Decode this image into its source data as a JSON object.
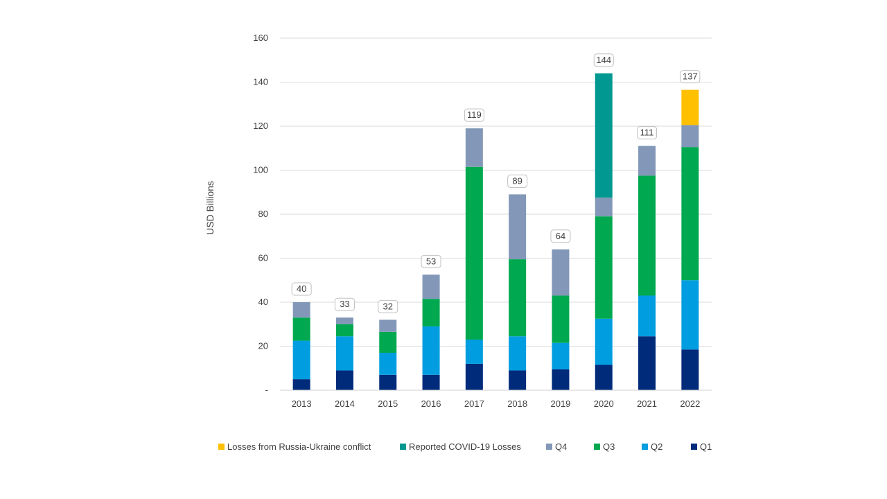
{
  "chart_data": {
    "type": "bar",
    "stacked": true,
    "title": "",
    "xlabel": "",
    "ylabel": "USD Billions",
    "ylim": [
      0,
      160
    ],
    "yticks": [
      {
        "value": 0,
        "label": "-"
      },
      {
        "value": 20,
        "label": "20"
      },
      {
        "value": 40,
        "label": "40"
      },
      {
        "value": 60,
        "label": "60"
      },
      {
        "value": 80,
        "label": "80"
      },
      {
        "value": 100,
        "label": "100"
      },
      {
        "value": 120,
        "label": "120"
      },
      {
        "value": 140,
        "label": "140"
      },
      {
        "value": 160,
        "label": "160"
      }
    ],
    "grid": true,
    "legend_position": "bottom",
    "categories": [
      "2013",
      "2014",
      "2015",
      "2016",
      "2017",
      "2018",
      "2019",
      "2020",
      "2021",
      "2022"
    ],
    "series": [
      {
        "name": "Q1",
        "color": "#002b7a",
        "values": [
          5,
          9,
          7,
          7,
          12,
          9,
          9.5,
          11.5,
          24.5,
          18.5
        ]
      },
      {
        "name": "Q2",
        "color": "#009de0",
        "values": [
          17.5,
          15.5,
          10,
          22,
          11,
          15.5,
          12,
          21,
          18.5,
          31.5
        ]
      },
      {
        "name": "Q3",
        "color": "#00a84f",
        "values": [
          10.5,
          5.5,
          9.5,
          12.5,
          78.5,
          35,
          21.5,
          46.5,
          54.5,
          60.5
        ]
      },
      {
        "name": "Q4",
        "color": "#8398b8",
        "values": [
          7,
          3,
          5.5,
          11,
          17.5,
          29.5,
          21,
          8.5,
          13.5,
          10
        ]
      },
      {
        "name": "Reported COVID-19 Losses",
        "color": "#009891",
        "values": [
          0,
          0,
          0,
          0,
          0,
          0,
          0,
          56.5,
          0,
          0
        ]
      },
      {
        "name": "Losses from Russia-Ukraine conflict",
        "color": "#ffc000",
        "values": [
          0,
          0,
          0,
          0,
          0,
          0,
          0,
          0,
          0,
          16
        ]
      }
    ],
    "totals": [
      "40",
      "33",
      "32",
      "53",
      "119",
      "89",
      "64",
      "144",
      "111",
      "137"
    ]
  },
  "legend": [
    {
      "label": "Losses from Russia-Ukraine conflict",
      "color": "#ffc000",
      "icon": "square-swatch"
    },
    {
      "label": "Reported COVID-19 Losses",
      "color": "#009891",
      "icon": "square-swatch"
    },
    {
      "label": "Q4",
      "color": "#8398b8",
      "icon": "square-swatch"
    },
    {
      "label": "Q3",
      "color": "#00a84f",
      "icon": "square-swatch"
    },
    {
      "label": "Q2",
      "color": "#009de0",
      "icon": "square-swatch"
    },
    {
      "label": "Q1",
      "color": "#002b7a",
      "icon": "square-swatch"
    }
  ]
}
